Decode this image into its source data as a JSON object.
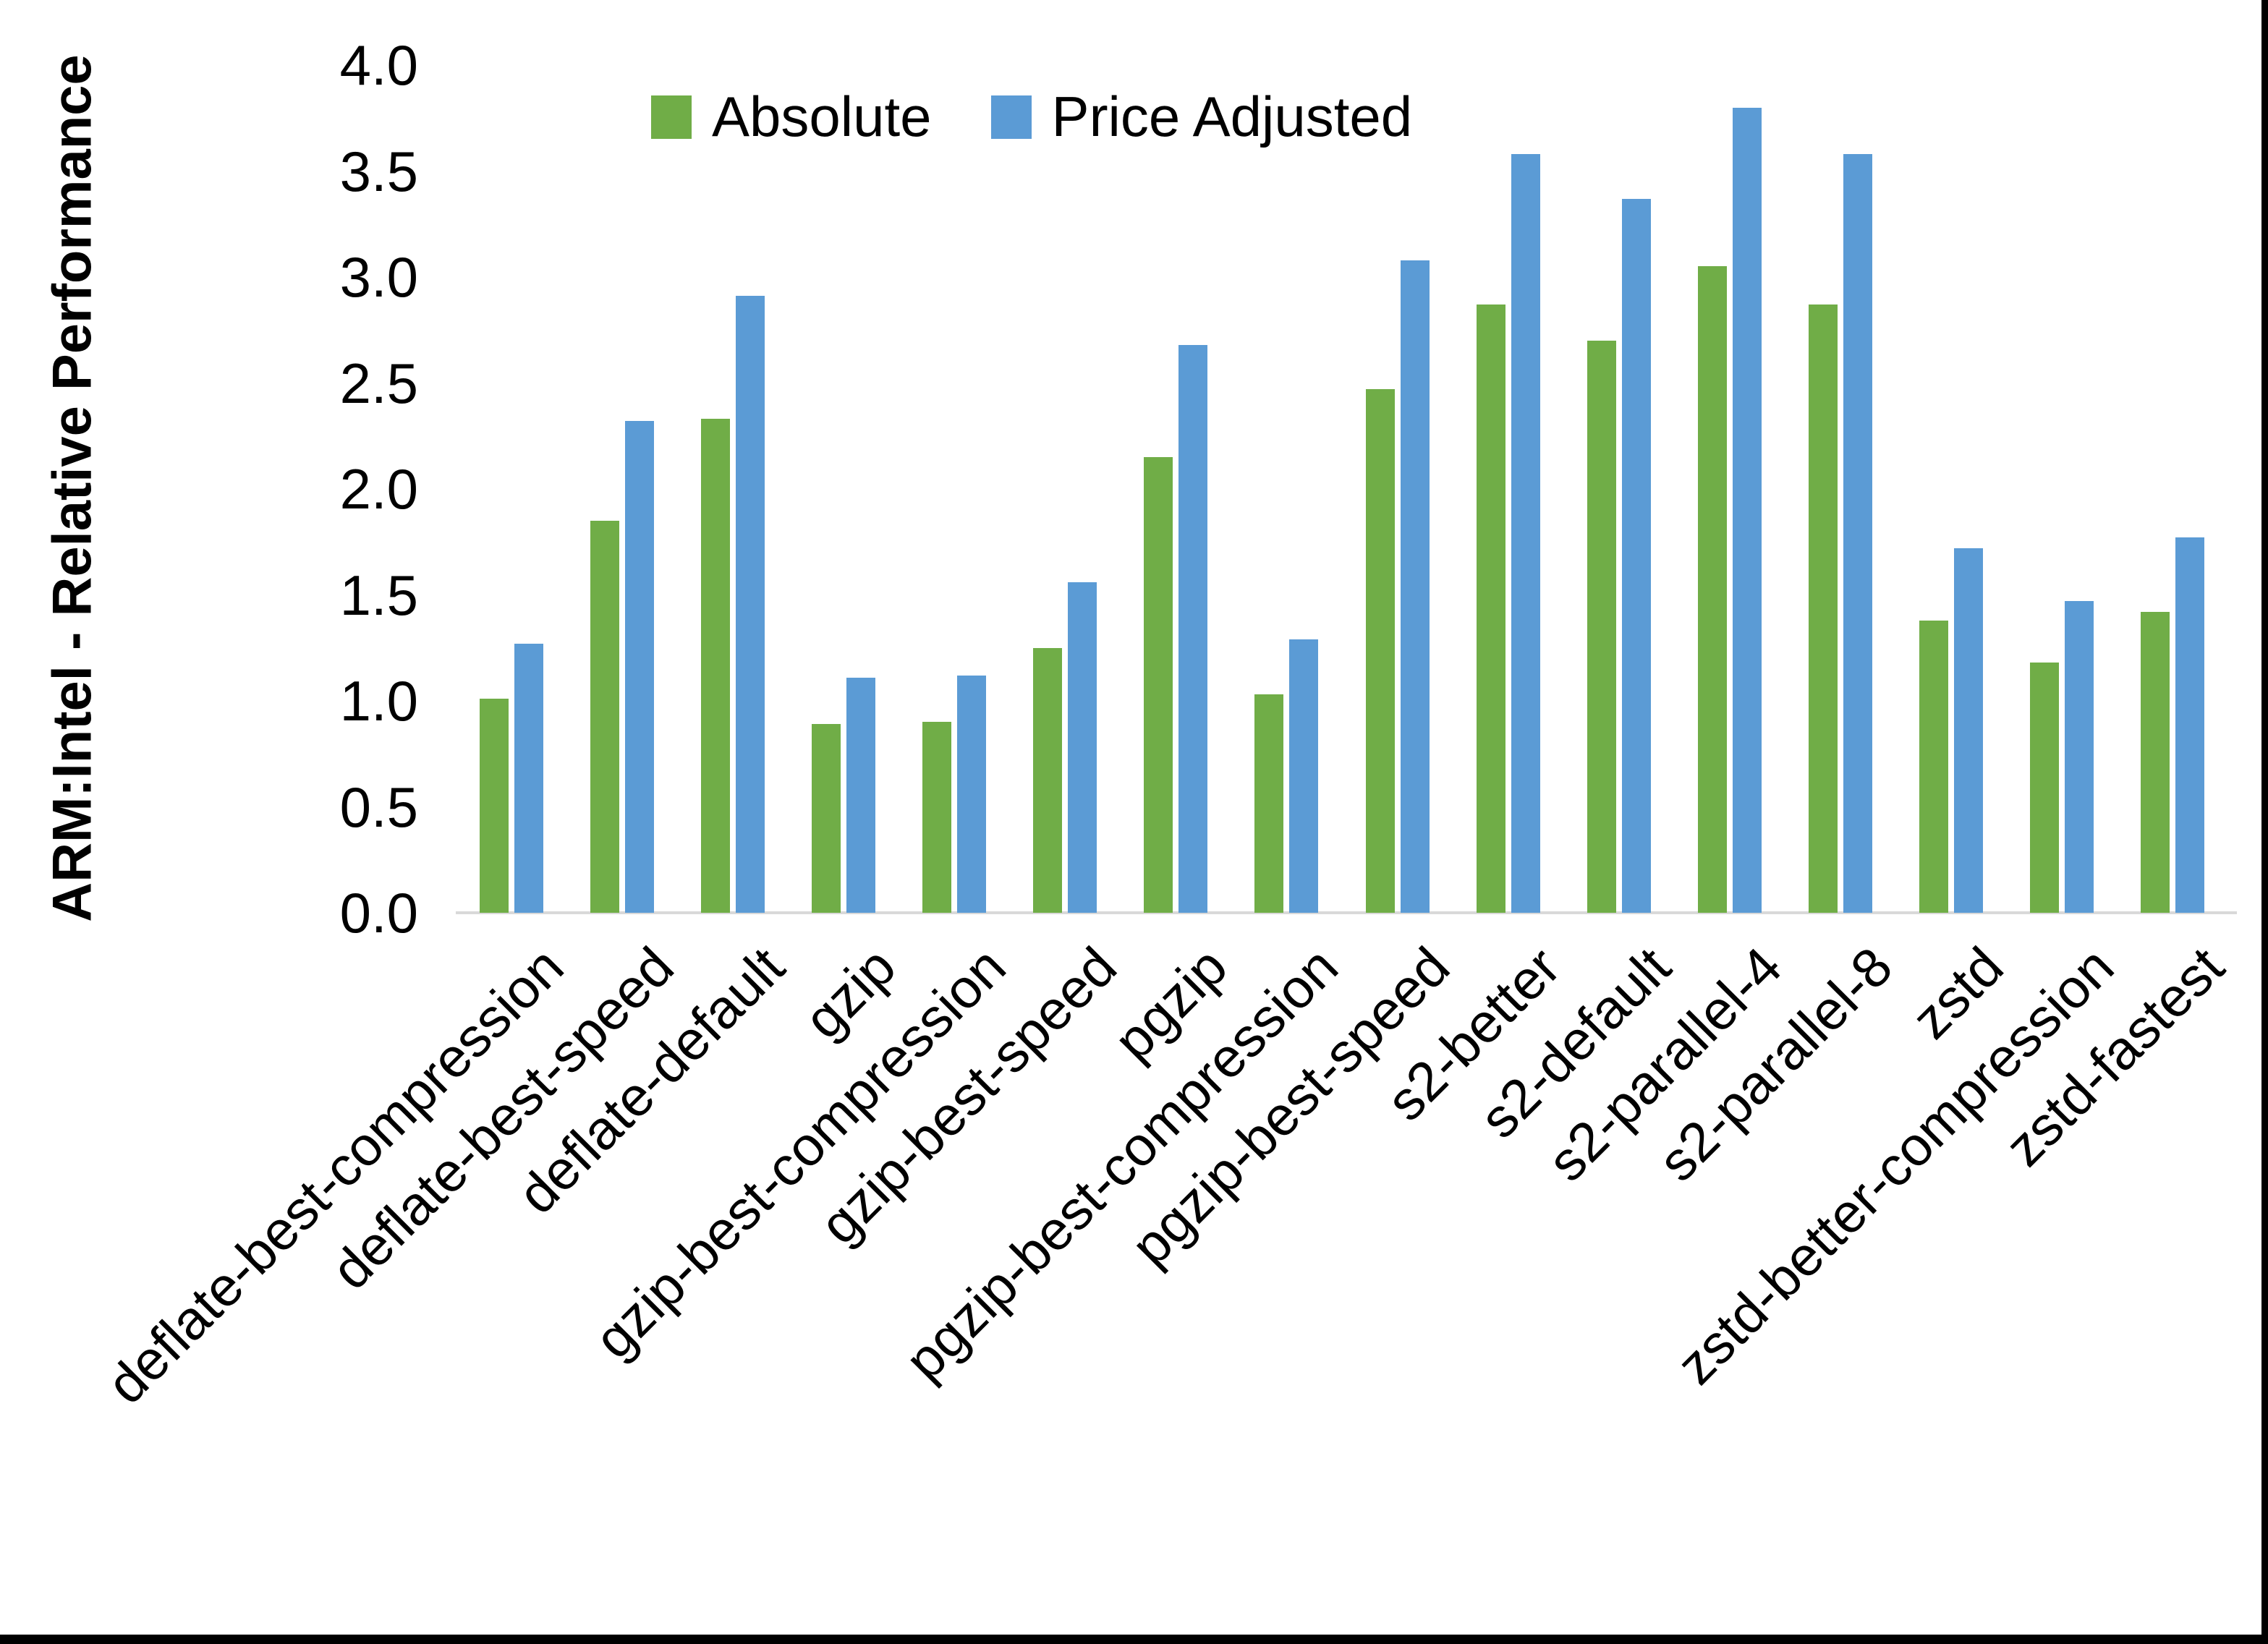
{
  "figure": {
    "y_axis_title": "ARM:Intel - Relative Performance"
  },
  "chart_data": {
    "type": "bar",
    "title": "",
    "xlabel": "",
    "ylabel": "ARM:Intel - Relative Performance",
    "ylim": [
      0.0,
      4.0
    ],
    "ytick_step": 0.5,
    "yticks": [
      "4.0",
      "3.5",
      "3.0",
      "2.5",
      "2.0",
      "1.5",
      "1.0",
      "0.5",
      "0.0"
    ],
    "grid": false,
    "legend_position": "top-center",
    "categories": [
      "deflate-best-compression",
      "deflate-best-speed",
      "deflate-default",
      "gzip",
      "gzip-best-compression",
      "gzip-best-speed",
      "pgzip",
      "pgzip-best-compression",
      "pgzip-best-speed",
      "s2-better",
      "s2-default",
      "s2-parallel-4",
      "s2-parallel-8",
      "zstd",
      "zstd-better-compression",
      "zstd-fastest"
    ],
    "series": [
      {
        "name": "Absolute",
        "color": "#70AD47",
        "values": [
          1.01,
          1.85,
          2.33,
          0.89,
          0.9,
          1.25,
          2.15,
          1.03,
          2.47,
          2.87,
          2.7,
          3.05,
          2.87,
          1.38,
          1.18,
          1.42
        ]
      },
      {
        "name": "Price Adjusted",
        "color": "#5B9BD5",
        "values": [
          1.27,
          2.32,
          2.91,
          1.11,
          1.12,
          1.56,
          2.68,
          1.29,
          3.08,
          3.58,
          3.37,
          3.8,
          3.58,
          1.72,
          1.47,
          1.77
        ]
      }
    ],
    "axis_line_color": "#D9D9D9"
  }
}
